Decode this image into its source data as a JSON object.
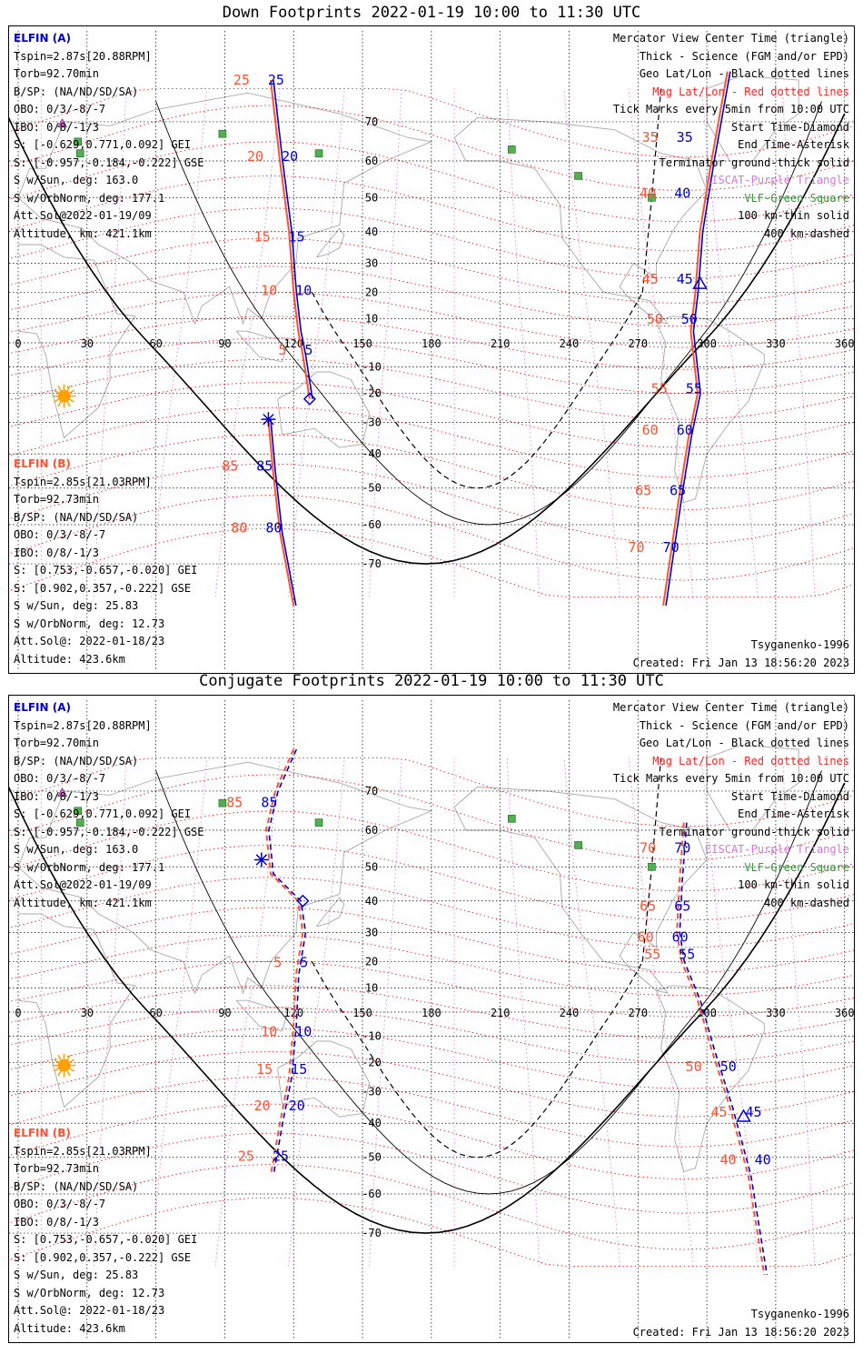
{
  "panels": [
    {
      "title": "Down Footprints 2022-01-19 10:00 to 11:30 UTC",
      "kind": "down",
      "sat_a": {
        "name": "ELFIN (A)",
        "lines": [
          "Tspin=2.87s[20.88RPM]",
          "Torb=92.70min",
          "B/SP: (NA/ND/SD/SA)",
          "OBO: 0/3/-8/-7",
          "IBO: 0/8/-1/3",
          "S: [-0.629,0.771,0.092] GEI",
          "S: [-0.957,-0.184,-0.222] GSE",
          "S w/Sun, deg: 163.0",
          "S w/OrbNorm, deg: 177.1",
          "Att.Sol@2022-01-19/09",
          "Altitude, km: 421.1km"
        ]
      },
      "sat_b": {
        "name": "ELFIN (B)",
        "lines": [
          "Tspin=2.85s[21.03RPM]",
          "Torb=92.73min",
          "B/SP: (NA/ND/SD/SA)",
          "OBO: 0/3/-8/-7",
          "IBO: 0/8/-1/3",
          "S: [0.753,-0.657,-0.020] GEI",
          "S: [0.902,0.357,-0.222] GSE",
          "S w/Sun, deg: 25.83",
          "S w/OrbNorm, deg: 12.73",
          "Att.Sol@: 2022-01-18/23",
          "Altitude: 423.6km"
        ]
      },
      "ab_labels": [
        {
          "a": "25",
          "b": "25",
          "lon": 108,
          "lat": 79
        },
        {
          "a": "20",
          "b": "20",
          "lon": 114,
          "lat": 60
        },
        {
          "a": "15",
          "b": "15",
          "lon": 117,
          "lat": 37
        },
        {
          "a": "10",
          "b": "10",
          "lon": 120,
          "lat": 19
        },
        {
          "a": "5",
          "b": "5",
          "lon": 124,
          "lat": -5
        }
      ],
      "ab_labels2": [
        {
          "a": "35",
          "b": "35",
          "lon": 286,
          "lat": 65
        },
        {
          "a": "40",
          "b": "40",
          "lon": 285,
          "lat": 50
        },
        {
          "a": "45",
          "b": "45",
          "lon": 286,
          "lat": 23
        },
        {
          "a": "50",
          "b": "50",
          "lon": 288,
          "lat": 8
        },
        {
          "a": "55",
          "b": "55",
          "lon": 290,
          "lat": -20
        },
        {
          "a": "60",
          "b": "60",
          "lon": 286,
          "lat": -34
        },
        {
          "a": "65",
          "b": "65",
          "lon": 283,
          "lat": -52
        },
        {
          "a": "70",
          "b": "70",
          "lon": 280,
          "lat": -67
        }
      ],
      "b_labels": [
        {
          "a": "85",
          "b": "85",
          "lon": 103,
          "lat": -45
        },
        {
          "a": "80",
          "b": "80",
          "lon": 107,
          "lat": -62
        }
      ]
    },
    {
      "title": "Conjugate Footprints 2022-01-19 10:00 to 11:30 UTC",
      "kind": "conj",
      "sat_a": {
        "name": "ELFIN (A)",
        "lines": [
          "Tspin=2.87s[20.88RPM]",
          "Torb=92.70min",
          "B/SP: (NA/ND/SD/SA)",
          "OBO: 0/3/-8/-7",
          "IBO: 0/8/-1/3",
          "S: [-0.629,0.771,0.092] GEI",
          "S: [-0.957,-0.184,-0.222] GSE",
          "S w/Sun, deg: 163.0",
          "S w/OrbNorm, deg: 177.1",
          "Att.Sol@2022-01-19/09",
          "Altitude, km: 421.1km"
        ]
      },
      "sat_b": {
        "name": "ELFIN (B)",
        "lines": [
          "Tspin=2.85s[21.03RPM]",
          "Torb=92.73min",
          "B/SP: (NA/ND/SD/SA)",
          "OBO: 0/3/-8/-7",
          "IBO: 0/8/-1/3",
          "S: [0.753,-0.657,-0.020] GEI",
          "S: [0.902,0.357,-0.222] GSE",
          "S w/Sun, deg: 25.83",
          "S w/OrbNorm, deg: 12.73",
          "Att.Sol@: 2022-01-18/23",
          "Altitude: 423.6km"
        ]
      },
      "ab_labels": [
        {
          "a": "85",
          "b": "85",
          "lon": 105,
          "lat": 66
        },
        {
          "a": "5",
          "b": "5",
          "lon": 122,
          "lat": 18
        },
        {
          "a": "10",
          "b": "10",
          "lon": 120,
          "lat": -10
        },
        {
          "a": "15",
          "b": "15",
          "lon": 118,
          "lat": -24
        },
        {
          "a": "20",
          "b": "20",
          "lon": 117,
          "lat": -36
        },
        {
          "a": "25",
          "b": "25",
          "lon": 110,
          "lat": -51
        }
      ],
      "ab_labels2": [
        {
          "a": "70",
          "b": "70",
          "lon": 285,
          "lat": 54
        },
        {
          "a": "65",
          "b": "65",
          "lon": 285,
          "lat": 37
        },
        {
          "a": "60",
          "b": "60",
          "lon": 284,
          "lat": 27
        },
        {
          "a": "55",
          "b": "55",
          "lon": 287,
          "lat": 21
        },
        {
          "a": "50",
          "b": "50",
          "lon": 305,
          "lat": -23
        },
        {
          "a": "45",
          "b": "45",
          "lon": 316,
          "lat": -38
        },
        {
          "a": "40",
          "b": "40",
          "lon": 320,
          "lat": -52
        }
      ],
      "b_labels": []
    }
  ],
  "legend": [
    {
      "text": "Mercator View Center Time (triangle)",
      "color": "#000000"
    },
    {
      "text": "Thick - Science (FGM and/or EPD)",
      "color": "#000000"
    },
    {
      "text": "Geo Lat/Lon - Black dotted lines",
      "color": "#000000"
    },
    {
      "text": "Mag Lat/Lon - Red dotted lines",
      "color": "#ff2020"
    },
    {
      "text": "Tick Marks every 5min from 10:00 UTC",
      "color": "#000000"
    },
    {
      "text": "Start Time-Diamond",
      "color": "#000000"
    },
    {
      "text": "End Time-Asterisk",
      "color": "#000000"
    },
    {
      "text": "Terminator ground-thick solid",
      "color": "#000000"
    },
    {
      "text": "EISCAT-Purple Triangle",
      "color": "#e070e0"
    },
    {
      "text": "VLF-Green Square",
      "color": "#30a030"
    },
    {
      "text": "100 km-thin solid",
      "color": "#000000"
    },
    {
      "text": "400 km-dashed",
      "color": "#000000"
    }
  ],
  "footer_left": "Tsyganenko-1996",
  "footer_right": "Created: Fri Jan 13 18:56:20 2023",
  "lon_ticks": [
    "0",
    "30",
    "60",
    "90",
    "120",
    "150",
    "180",
    "210",
    "240",
    "270",
    "300",
    "330",
    "360"
  ],
  "lat_ticks": [
    {
      "label": "70",
      "lat": 70
    },
    {
      "label": "60",
      "lat": 60
    },
    {
      "label": "50",
      "lat": 50
    },
    {
      "label": "40",
      "lat": 40
    },
    {
      "label": "30",
      "lat": 30
    },
    {
      "label": "20",
      "lat": 20
    },
    {
      "label": "10",
      "lat": 10
    },
    {
      "label": "-10",
      "lat": -10
    },
    {
      "label": "-20",
      "lat": -20
    },
    {
      "label": "-30",
      "lat": -30
    },
    {
      "label": "-40",
      "lat": -40
    },
    {
      "label": "-50",
      "lat": -50
    },
    {
      "label": "-60",
      "lat": -60
    },
    {
      "label": "-70",
      "lat": -70
    }
  ],
  "vlf_stations": [
    {
      "lon": 89,
      "lat": 67
    },
    {
      "lon": 26,
      "lat": 65
    },
    {
      "lon": 27,
      "lat": 62
    },
    {
      "lon": 131,
      "lat": 62
    },
    {
      "lon": 215,
      "lat": 63
    },
    {
      "lon": 244,
      "lat": 56
    },
    {
      "lon": 276,
      "lat": 50
    }
  ],
  "eiscat": {
    "lon": 19.2,
    "lat": 69.6
  },
  "sun": {
    "lon": 20,
    "lat": -21
  },
  "colors": {
    "sat_a": "#0000cc",
    "sat_b": "#ff5030",
    "mag_grid": "#ff0000",
    "geo_grid": "#000000",
    "eiscat": "#e070e0",
    "vlf": "#50b050",
    "coast": "#a8a8a8",
    "sun": "#ffa000"
  }
}
